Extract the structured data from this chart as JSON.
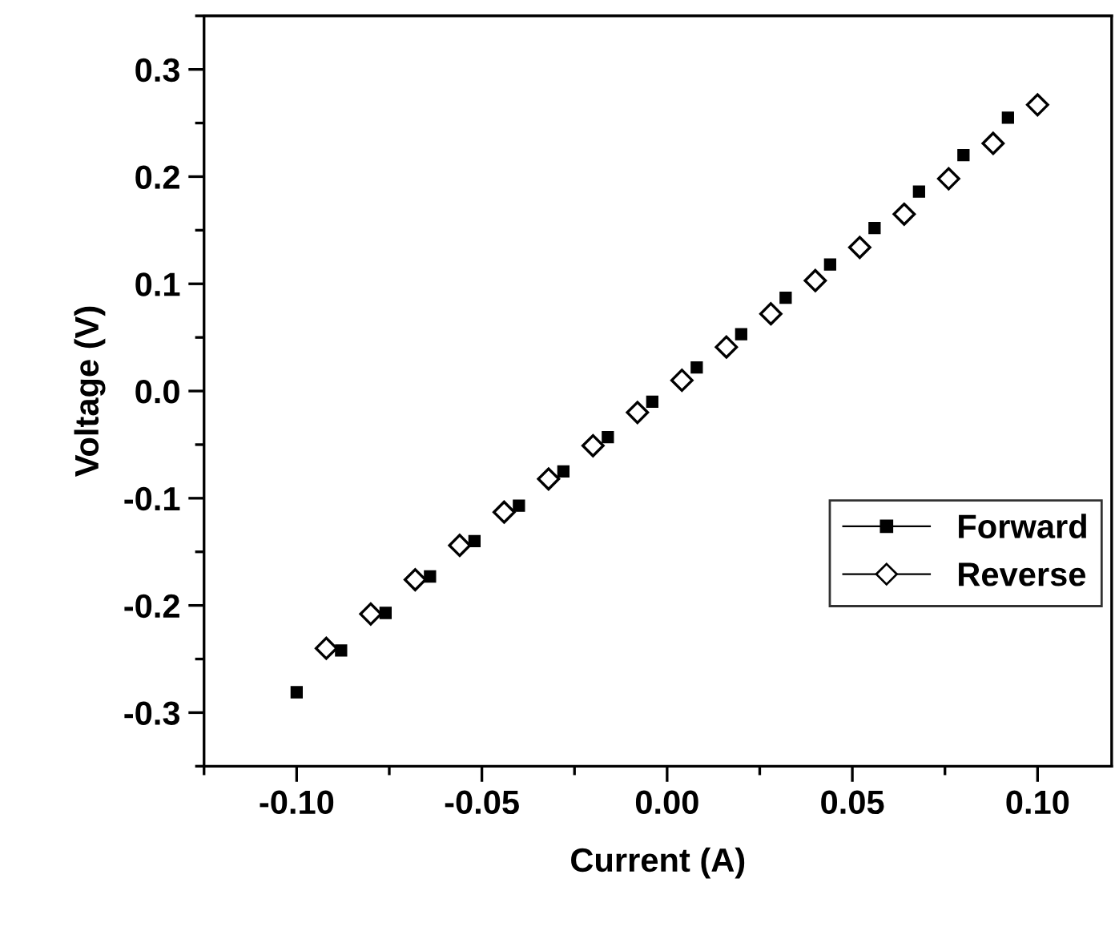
{
  "chart_data": {
    "type": "scatter",
    "xlabel": "Current (A)",
    "ylabel": "Voltage (V)",
    "xlim": [
      -0.125,
      0.12
    ],
    "ylim": [
      -0.35,
      0.35
    ],
    "xticks": [
      {
        "value": -0.1,
        "label": "-0.10"
      },
      {
        "value": -0.05,
        "label": "-0.05"
      },
      {
        "value": 0,
        "label": "0.00"
      },
      {
        "value": 0.05,
        "label": "0.05"
      },
      {
        "value": 0.1,
        "label": "0.10"
      }
    ],
    "yticks": [
      {
        "value": -0.3,
        "label": "-0.3"
      },
      {
        "value": -0.2,
        "label": "-0.2"
      },
      {
        "value": -0.1,
        "label": "-0.1"
      },
      {
        "value": 0,
        "label": "0.0"
      },
      {
        "value": 0.1,
        "label": "0.1"
      },
      {
        "value": 0.2,
        "label": "0.2"
      },
      {
        "value": 0.3,
        "label": "0.3"
      }
    ],
    "grid": false,
    "legend": "bottom right",
    "series": [
      {
        "name": "Forward",
        "color": "#000000",
        "marker": "square",
        "x": [
          -0.1,
          -0.088,
          -0.076,
          -0.064,
          -0.052,
          -0.04,
          -0.028,
          -0.016,
          -0.004,
          0.008,
          0.02,
          0.032,
          0.044,
          0.056,
          0.068,
          0.08,
          0.092
        ],
        "values": [
          -0.281,
          -0.242,
          -0.207,
          -0.173,
          -0.14,
          -0.107,
          -0.075,
          -0.043,
          -0.01,
          0.022,
          0.053,
          0.087,
          0.118,
          0.152,
          0.186,
          0.22,
          0.255
        ]
      },
      {
        "name": "Reverse",
        "color": "#000000",
        "marker": "diamond",
        "x": [
          -0.092,
          -0.08,
          -0.068,
          -0.056,
          -0.044,
          -0.032,
          -0.02,
          -0.008,
          0.004,
          0.016,
          0.028,
          0.04,
          0.052,
          0.064,
          0.076,
          0.088,
          0.1
        ],
        "values": [
          -0.24,
          -0.208,
          -0.176,
          -0.144,
          -0.113,
          -0.082,
          -0.051,
          -0.02,
          0.01,
          0.041,
          0.072,
          0.103,
          0.134,
          0.165,
          0.198,
          0.231,
          0.267
        ]
      }
    ]
  }
}
